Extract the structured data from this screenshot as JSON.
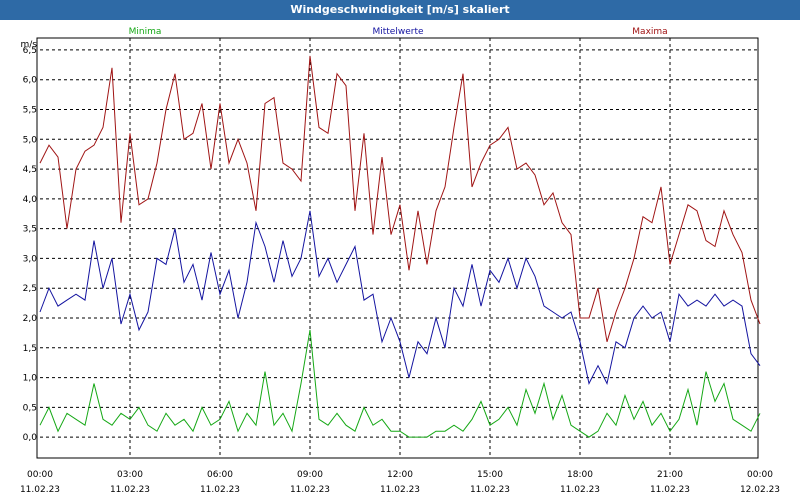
{
  "chart_data": {
    "type": "line",
    "title": "Windgeschwindigkeit [m/s] skaliert",
    "ylabel": "m/s",
    "ylim": [
      -0.35,
      6.7
    ],
    "yticks": [
      0.0,
      0.5,
      1.0,
      1.5,
      2.0,
      2.5,
      3.0,
      3.5,
      4.0,
      4.5,
      5.0,
      5.5,
      6.0,
      6.5
    ],
    "ytick_labels": [
      "0,0",
      "0,5",
      "1,0",
      "1,5",
      "2,0",
      "2,5",
      "3,0",
      "3,5",
      "4,0",
      "4,5",
      "5,0",
      "5,5",
      "6,0",
      "6,5"
    ],
    "xlim": [
      0,
      24
    ],
    "xticks": [
      {
        "h": 0,
        "time": "00:00",
        "date": "11.02.23"
      },
      {
        "h": 3,
        "time": "03:00",
        "date": "11.02.23"
      },
      {
        "h": 6,
        "time": "06:00",
        "date": "11.02.23"
      },
      {
        "h": 9,
        "time": "09:00",
        "date": "11.02.23"
      },
      {
        "h": 12,
        "time": "12:00",
        "date": "11.02.23"
      },
      {
        "h": 15,
        "time": "15:00",
        "date": "11.02.23"
      },
      {
        "h": 18,
        "time": "18:00",
        "date": "11.02.23"
      },
      {
        "h": 21,
        "time": "21:00",
        "date": "11.02.23"
      },
      {
        "h": 24,
        "time": "00:00",
        "date": "12.02.23"
      }
    ],
    "grid": true,
    "series": [
      {
        "name": "Minima",
        "color": "#16a816",
        "points": [
          [
            0,
            0.2
          ],
          [
            0.3,
            0.5
          ],
          [
            0.6,
            0.1
          ],
          [
            0.9,
            0.4
          ],
          [
            1.2,
            0.3
          ],
          [
            1.5,
            0.2
          ],
          [
            1.8,
            0.9
          ],
          [
            2.1,
            0.3
          ],
          [
            2.4,
            0.2
          ],
          [
            2.7,
            0.4
          ],
          [
            3.0,
            0.3
          ],
          [
            3.3,
            0.5
          ],
          [
            3.6,
            0.2
          ],
          [
            3.9,
            0.1
          ],
          [
            4.2,
            0.4
          ],
          [
            4.5,
            0.2
          ],
          [
            4.8,
            0.3
          ],
          [
            5.1,
            0.1
          ],
          [
            5.4,
            0.5
          ],
          [
            5.7,
            0.2
          ],
          [
            6.0,
            0.3
          ],
          [
            6.3,
            0.6
          ],
          [
            6.6,
            0.1
          ],
          [
            6.9,
            0.4
          ],
          [
            7.2,
            0.2
          ],
          [
            7.5,
            1.1
          ],
          [
            7.8,
            0.2
          ],
          [
            8.1,
            0.4
          ],
          [
            8.4,
            0.1
          ],
          [
            8.7,
            0.9
          ],
          [
            9.0,
            1.8
          ],
          [
            9.3,
            0.3
          ],
          [
            9.6,
            0.2
          ],
          [
            9.9,
            0.4
          ],
          [
            10.2,
            0.2
          ],
          [
            10.5,
            0.1
          ],
          [
            10.8,
            0.5
          ],
          [
            11.1,
            0.2
          ],
          [
            11.4,
            0.3
          ],
          [
            11.7,
            0.1
          ],
          [
            12.0,
            0.1
          ],
          [
            12.3,
            0.0
          ],
          [
            12.6,
            0.0
          ],
          [
            12.9,
            0.0
          ],
          [
            13.2,
            0.1
          ],
          [
            13.5,
            0.1
          ],
          [
            13.8,
            0.2
          ],
          [
            14.1,
            0.1
          ],
          [
            14.4,
            0.3
          ],
          [
            14.7,
            0.6
          ],
          [
            15.0,
            0.2
          ],
          [
            15.3,
            0.3
          ],
          [
            15.6,
            0.5
          ],
          [
            15.9,
            0.2
          ],
          [
            16.2,
            0.8
          ],
          [
            16.5,
            0.4
          ],
          [
            16.8,
            0.9
          ],
          [
            17.1,
            0.3
          ],
          [
            17.4,
            0.7
          ],
          [
            17.7,
            0.2
          ],
          [
            18.0,
            0.1
          ],
          [
            18.3,
            0.0
          ],
          [
            18.6,
            0.1
          ],
          [
            18.9,
            0.4
          ],
          [
            19.2,
            0.2
          ],
          [
            19.5,
            0.7
          ],
          [
            19.8,
            0.3
          ],
          [
            20.1,
            0.6
          ],
          [
            20.4,
            0.2
          ],
          [
            20.7,
            0.4
          ],
          [
            21.0,
            0.1
          ],
          [
            21.3,
            0.3
          ],
          [
            21.6,
            0.8
          ],
          [
            21.9,
            0.2
          ],
          [
            22.2,
            1.1
          ],
          [
            22.5,
            0.6
          ],
          [
            22.8,
            0.9
          ],
          [
            23.1,
            0.3
          ],
          [
            23.4,
            0.2
          ],
          [
            23.7,
            0.1
          ],
          [
            24.0,
            0.4
          ]
        ]
      },
      {
        "name": "Mittelwerte",
        "color": "#1414a0",
        "points": [
          [
            0,
            2.1
          ],
          [
            0.3,
            2.5
          ],
          [
            0.6,
            2.2
          ],
          [
            0.9,
            2.3
          ],
          [
            1.2,
            2.4
          ],
          [
            1.5,
            2.3
          ],
          [
            1.8,
            3.3
          ],
          [
            2.1,
            2.5
          ],
          [
            2.4,
            3.0
          ],
          [
            2.7,
            1.9
          ],
          [
            3.0,
            2.4
          ],
          [
            3.3,
            1.8
          ],
          [
            3.6,
            2.1
          ],
          [
            3.9,
            3.0
          ],
          [
            4.2,
            2.9
          ],
          [
            4.5,
            3.5
          ],
          [
            4.8,
            2.6
          ],
          [
            5.1,
            2.9
          ],
          [
            5.4,
            2.3
          ],
          [
            5.7,
            3.1
          ],
          [
            6.0,
            2.4
          ],
          [
            6.3,
            2.8
          ],
          [
            6.6,
            2.0
          ],
          [
            6.9,
            2.6
          ],
          [
            7.2,
            3.6
          ],
          [
            7.5,
            3.2
          ],
          [
            7.8,
            2.6
          ],
          [
            8.1,
            3.3
          ],
          [
            8.4,
            2.7
          ],
          [
            8.7,
            3.0
          ],
          [
            9.0,
            3.8
          ],
          [
            9.3,
            2.7
          ],
          [
            9.6,
            3.0
          ],
          [
            9.9,
            2.6
          ],
          [
            10.2,
            2.9
          ],
          [
            10.5,
            3.2
          ],
          [
            10.8,
            2.3
          ],
          [
            11.1,
            2.4
          ],
          [
            11.4,
            1.6
          ],
          [
            11.7,
            2.0
          ],
          [
            12.0,
            1.6
          ],
          [
            12.3,
            1.0
          ],
          [
            12.6,
            1.6
          ],
          [
            12.9,
            1.4
          ],
          [
            13.2,
            2.0
          ],
          [
            13.5,
            1.5
          ],
          [
            13.8,
            2.5
          ],
          [
            14.1,
            2.2
          ],
          [
            14.4,
            2.9
          ],
          [
            14.7,
            2.2
          ],
          [
            15.0,
            2.8
          ],
          [
            15.3,
            2.6
          ],
          [
            15.6,
            3.0
          ],
          [
            15.9,
            2.5
          ],
          [
            16.2,
            3.0
          ],
          [
            16.5,
            2.7
          ],
          [
            16.8,
            2.2
          ],
          [
            17.1,
            2.1
          ],
          [
            17.4,
            2.0
          ],
          [
            17.7,
            2.1
          ],
          [
            18.0,
            1.6
          ],
          [
            18.3,
            0.9
          ],
          [
            18.6,
            1.2
          ],
          [
            18.9,
            0.9
          ],
          [
            19.2,
            1.6
          ],
          [
            19.5,
            1.5
          ],
          [
            19.8,
            2.0
          ],
          [
            20.1,
            2.2
          ],
          [
            20.4,
            2.0
          ],
          [
            20.7,
            2.1
          ],
          [
            21.0,
            1.6
          ],
          [
            21.3,
            2.4
          ],
          [
            21.6,
            2.2
          ],
          [
            21.9,
            2.3
          ],
          [
            22.2,
            2.2
          ],
          [
            22.5,
            2.4
          ],
          [
            22.8,
            2.2
          ],
          [
            23.1,
            2.3
          ],
          [
            23.4,
            2.2
          ],
          [
            23.7,
            1.4
          ],
          [
            24.0,
            1.2
          ]
        ]
      },
      {
        "name": "Maxima",
        "color": "#a01414",
        "points": [
          [
            0,
            4.6
          ],
          [
            0.3,
            4.9
          ],
          [
            0.6,
            4.7
          ],
          [
            0.9,
            3.5
          ],
          [
            1.2,
            4.5
          ],
          [
            1.5,
            4.8
          ],
          [
            1.8,
            4.9
          ],
          [
            2.1,
            5.2
          ],
          [
            2.4,
            6.2
          ],
          [
            2.7,
            3.6
          ],
          [
            3.0,
            5.1
          ],
          [
            3.3,
            3.9
          ],
          [
            3.6,
            4.0
          ],
          [
            3.9,
            4.6
          ],
          [
            4.2,
            5.5
          ],
          [
            4.5,
            6.1
          ],
          [
            4.8,
            5.0
          ],
          [
            5.1,
            5.1
          ],
          [
            5.4,
            5.6
          ],
          [
            5.7,
            4.5
          ],
          [
            6.0,
            5.6
          ],
          [
            6.3,
            4.6
          ],
          [
            6.6,
            5.0
          ],
          [
            6.9,
            4.6
          ],
          [
            7.2,
            3.8
          ],
          [
            7.5,
            5.6
          ],
          [
            7.8,
            5.7
          ],
          [
            8.1,
            4.6
          ],
          [
            8.4,
            4.5
          ],
          [
            8.7,
            4.3
          ],
          [
            9.0,
            6.4
          ],
          [
            9.3,
            5.2
          ],
          [
            9.6,
            5.1
          ],
          [
            9.9,
            6.1
          ],
          [
            10.2,
            5.9
          ],
          [
            10.5,
            3.8
          ],
          [
            10.8,
            5.1
          ],
          [
            11.1,
            3.4
          ],
          [
            11.4,
            4.7
          ],
          [
            11.7,
            3.4
          ],
          [
            12.0,
            3.9
          ],
          [
            12.3,
            2.8
          ],
          [
            12.6,
            3.8
          ],
          [
            12.9,
            2.9
          ],
          [
            13.2,
            3.8
          ],
          [
            13.5,
            4.2
          ],
          [
            13.8,
            5.2
          ],
          [
            14.1,
            6.1
          ],
          [
            14.4,
            4.2
          ],
          [
            14.7,
            4.6
          ],
          [
            15.0,
            4.9
          ],
          [
            15.3,
            5.0
          ],
          [
            15.6,
            5.2
          ],
          [
            15.9,
            4.5
          ],
          [
            16.2,
            4.6
          ],
          [
            16.5,
            4.4
          ],
          [
            16.8,
            3.9
          ],
          [
            17.1,
            4.1
          ],
          [
            17.4,
            3.6
          ],
          [
            17.7,
            3.4
          ],
          [
            18.0,
            2.0
          ],
          [
            18.3,
            2.0
          ],
          [
            18.6,
            2.5
          ],
          [
            18.9,
            1.6
          ],
          [
            19.2,
            2.1
          ],
          [
            19.5,
            2.5
          ],
          [
            19.8,
            3.0
          ],
          [
            20.1,
            3.7
          ],
          [
            20.4,
            3.6
          ],
          [
            20.7,
            4.2
          ],
          [
            21.0,
            2.9
          ],
          [
            21.3,
            3.4
          ],
          [
            21.6,
            3.9
          ],
          [
            21.9,
            3.8
          ],
          [
            22.2,
            3.3
          ],
          [
            22.5,
            3.2
          ],
          [
            22.8,
            3.8
          ],
          [
            23.1,
            3.4
          ],
          [
            23.4,
            3.1
          ],
          [
            23.7,
            2.3
          ],
          [
            24.0,
            1.9
          ]
        ]
      }
    ]
  }
}
